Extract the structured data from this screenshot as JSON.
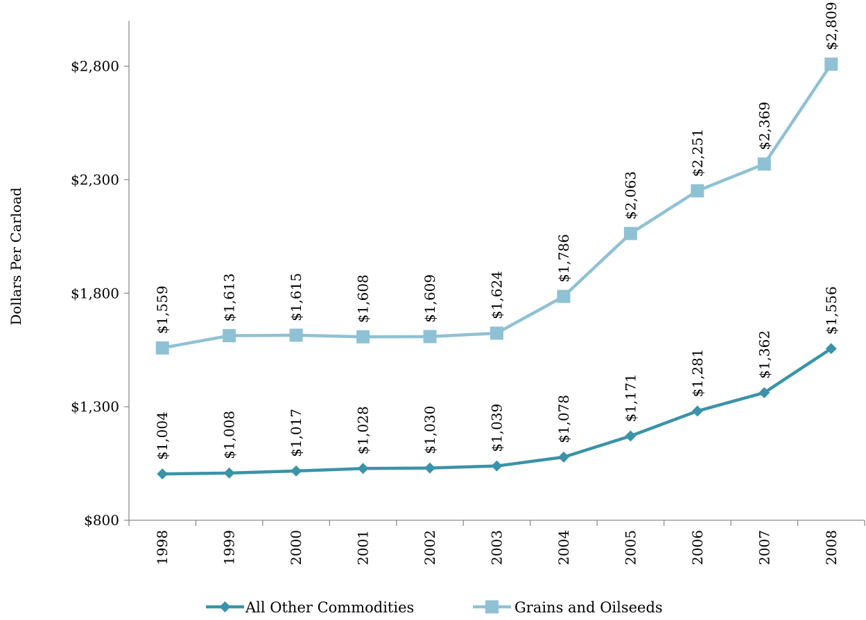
{
  "chart_data": {
    "type": "line",
    "ylabel": "Dollars Per Carload",
    "xlabel": "",
    "ylim": [
      800,
      3000
    ],
    "yticks": [
      800,
      1300,
      1800,
      2300,
      2800
    ],
    "ytick_labels": [
      "$800",
      "$1,300",
      "$1,800",
      "$2,300",
      "$2,800"
    ],
    "categories": [
      "1998",
      "1999",
      "2000",
      "2001",
      "2002",
      "2003",
      "2004",
      "2005",
      "2006",
      "2007",
      "2008"
    ],
    "series": [
      {
        "name": "All Other Commodities",
        "marker": "diamond",
        "color": "#3a93a8",
        "values": [
          1004,
          1008,
          1017,
          1028,
          1030,
          1039,
          1078,
          1171,
          1281,
          1362,
          1556
        ],
        "labels": [
          "$1,004",
          "$1,008",
          "$1,017",
          "$1,028",
          "$1,030",
          "$1,039",
          "$1,078",
          "$1,171",
          "$1,281",
          "$1,362",
          "$1,556"
        ]
      },
      {
        "name": "Grains and Oilseeds",
        "marker": "square",
        "color": "#8fc1d4",
        "values": [
          1559,
          1613,
          1615,
          1608,
          1609,
          1624,
          1786,
          2063,
          2251,
          2369,
          2809
        ],
        "labels": [
          "$1,559",
          "$1,613",
          "$1,615",
          "$1,608",
          "$1,609",
          "$1,624",
          "$1,786",
          "$2,063",
          "$2,251",
          "$2,369",
          "$2,809"
        ]
      }
    ],
    "grid": false,
    "legend": "bottom"
  }
}
